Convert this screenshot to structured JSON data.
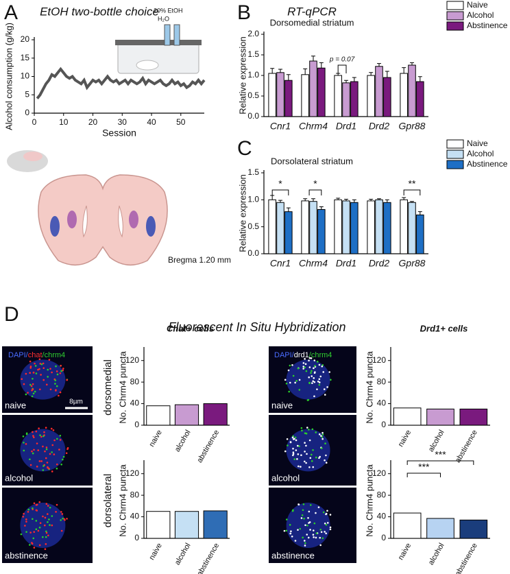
{
  "panels": [
    "A",
    "B",
    "C",
    "D"
  ],
  "panel_a": {
    "inset_labels": [
      "20% EtOH",
      "H₂O"
    ],
    "bregma": "Bregma 1.20 mm"
  },
  "panel_d": {
    "heading": "Fluorescent In Situ Hybridization",
    "left_legend": [
      "DAPI/",
      "chat",
      "/chrm4"
    ],
    "right_legend": [
      "DAPI/",
      "drd1",
      "/chrm4"
    ],
    "scale": "8µm",
    "left_images": [
      "naive",
      "alcohol",
      "abstinence"
    ],
    "right_images": [
      "naive",
      "alcohol",
      "abstinence"
    ]
  },
  "chart_data": [
    {
      "type": "line",
      "title": "EtOH two-bottle choice",
      "xlabel": "Session",
      "ylabel": "Alcohol consumption (g/kg)",
      "color": "#555555",
      "x": [
        1,
        2,
        3,
        4,
        5,
        6,
        7,
        8,
        9,
        10,
        11,
        12,
        13,
        14,
        15,
        16,
        17,
        18,
        19,
        20,
        21,
        22,
        23,
        24,
        25,
        26,
        27,
        28,
        29,
        30,
        31,
        32,
        33,
        34,
        35,
        36,
        37,
        38,
        39,
        40,
        41,
        42,
        43,
        44,
        45,
        46,
        47,
        48,
        49,
        50,
        51,
        52,
        53,
        54,
        55,
        56,
        57,
        58
      ],
      "y": [
        4,
        5,
        6.5,
        8,
        9,
        10.5,
        10,
        11,
        12,
        11,
        10,
        9.5,
        10,
        9,
        8.5,
        8,
        9,
        7,
        8,
        9,
        8.5,
        9,
        8,
        9,
        10,
        9,
        8.5,
        9,
        8,
        8.5,
        9,
        8,
        9,
        8.5,
        8,
        8.5,
        9.5,
        8,
        9,
        8.5,
        8,
        8.5,
        9,
        8,
        7.5,
        8,
        9,
        8,
        8.5,
        7.5,
        8,
        7,
        7.5,
        8.5,
        8,
        9,
        8,
        9
      ],
      "xlim": [
        0,
        58
      ],
      "xticks": [
        0,
        10,
        20,
        30,
        40,
        50
      ],
      "ylim": [
        0,
        20
      ],
      "yticks": [
        0,
        5,
        10,
        15,
        20
      ]
    },
    {
      "type": "bar",
      "title": "RT-qPCR",
      "subtitle": "Dorsomedial striatum",
      "ylabel": "Relative expression",
      "legend": "top-right",
      "categories": [
        "Cnr1",
        "Chrm4",
        "Drd1",
        "Drd2",
        "Gpr88"
      ],
      "series": [
        {
          "name": "Naive",
          "color": "#ffffff",
          "values": [
            1.05,
            1.02,
            1.0,
            1.0,
            1.05
          ],
          "errors": [
            0.12,
            0.14,
            0.05,
            0.07,
            0.14
          ]
        },
        {
          "name": "Alcohol",
          "color": "#c89bd1",
          "values": [
            1.07,
            1.35,
            0.82,
            1.22,
            1.25
          ],
          "errors": [
            0.08,
            0.12,
            0.06,
            0.07,
            0.06
          ]
        },
        {
          "name": "Abstinence",
          "color": "#7a1a7e",
          "values": [
            0.88,
            1.18,
            0.85,
            0.95,
            0.85
          ],
          "errors": [
            0.14,
            0.13,
            0.1,
            0.15,
            0.12
          ]
        }
      ],
      "ylim": [
        0,
        2.0
      ],
      "yticks": [
        {
          "value": 0,
          "label": "0.0"
        },
        0.5,
        {
          "value": 1,
          "label": "1.0"
        },
        1.5,
        {
          "value": 2,
          "label": "2.0"
        }
      ],
      "annotations": [
        "p = 0.07"
      ]
    },
    {
      "type": "bar",
      "subtitle": "Dorsolateral striatum",
      "ylabel": "Relative expression",
      "legend": "top-right",
      "categories": [
        "Cnr1",
        "Chrm4",
        "Drd1",
        "Drd2",
        "Gpr88"
      ],
      "series": [
        {
          "name": "Naive",
          "color": "#ffffff",
          "values": [
            1.0,
            0.98,
            1.0,
            0.98,
            1.0
          ],
          "errors": [
            0.08,
            0.04,
            0.03,
            0.03,
            0.04
          ]
        },
        {
          "name": "Alcohol",
          "color": "#c5e0f4",
          "values": [
            0.95,
            0.97,
            0.98,
            1.0,
            0.95
          ],
          "errors": [
            0.04,
            0.05,
            0.03,
            0.02,
            0.02
          ]
        },
        {
          "name": "Abstinence",
          "color": "#1e6fc5",
          "values": [
            0.78,
            0.82,
            0.95,
            0.95,
            0.72
          ],
          "errors": [
            0.07,
            0.05,
            0.05,
            0.05,
            0.06
          ]
        }
      ],
      "ylim": [
        0,
        1.5
      ],
      "yticks": [
        {
          "value": 0,
          "label": "0.0"
        },
        0.5,
        {
          "value": 1,
          "label": "1.0"
        },
        1.5
      ],
      "annotations": [
        "*",
        "*",
        "**"
      ]
    },
    {
      "type": "bar",
      "title": "Chat+ cells",
      "row_label": "dorsomedial",
      "ylabel": "No. Chrm4 puncta",
      "categories": [
        "naive",
        "alcohol",
        "abstinence"
      ],
      "values": [
        36,
        38,
        40
      ],
      "colors": [
        "#ffffff",
        "#c89bd1",
        "#7a1a7e"
      ],
      "ylim": [
        0,
        140
      ],
      "yticks": [
        0,
        40,
        80,
        120
      ]
    },
    {
      "type": "bar",
      "row_label": "dorsolateral",
      "ylabel": "No. Chrm4 puncta",
      "categories": [
        "naive",
        "alcohol",
        "abstinence"
      ],
      "values": [
        50,
        50,
        51
      ],
      "colors": [
        "#ffffff",
        "#c5e0f4",
        "#2f6db5"
      ],
      "ylim": [
        0,
        140
      ],
      "yticks": [
        0,
        40,
        80,
        120
      ]
    },
    {
      "type": "bar",
      "title": "Drd1+ cells",
      "ylabel": "No. Chrm4 puncta",
      "categories": [
        "naive",
        "alcohol",
        "abstinence"
      ],
      "values": [
        32,
        30,
        30
      ],
      "colors": [
        "#ffffff",
        "#c89bd1",
        "#7a1a7e"
      ],
      "ylim": [
        0,
        140
      ],
      "yticks": [
        0,
        40,
        80,
        120
      ]
    },
    {
      "type": "bar",
      "ylabel": "No. Chrm4 puncta",
      "categories": [
        "naive",
        "alcohol",
        "abstinence"
      ],
      "values": [
        47,
        37,
        34
      ],
      "colors": [
        "#ffffff",
        "#b7d3f2",
        "#1a3d7c"
      ],
      "ylim": [
        0,
        140
      ],
      "yticks": [
        0,
        40,
        80,
        120
      ],
      "annotations": [
        "***",
        "***"
      ]
    }
  ]
}
